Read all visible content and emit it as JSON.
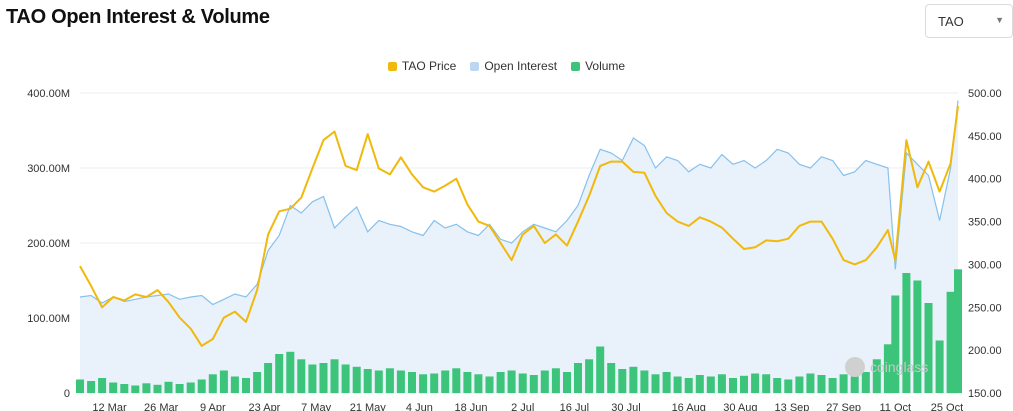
{
  "header": {
    "title": "TAO Open Interest & Volume",
    "symbol_select": {
      "value": "TAO"
    }
  },
  "colors": {
    "price": "#f0b90b",
    "open_interest_line": "#87c1ec",
    "open_interest_fill": "#e9f1fb",
    "volume": "#3cc47a"
  },
  "icons": {
    "dropdown": "caret-down-icon",
    "watermark": "coinglass-logo-icon"
  },
  "watermark": "coinglass",
  "chart_data": {
    "type": "line",
    "legend_position": "top-center",
    "legend": [
      "TAO Price",
      "Open Interest",
      "Volume"
    ],
    "x_ticks": [
      "12 Mar",
      "26 Mar",
      "9 Apr",
      "23 Apr",
      "7 May",
      "21 May",
      "4 Jun",
      "18 Jun",
      "2 Jul",
      "16 Jul",
      "30 Jul",
      "16 Aug",
      "30 Aug",
      "13 Sep",
      "27 Sep",
      "11 Oct",
      "25 Oct"
    ],
    "y_left": {
      "ticks": [
        "0",
        "100.00M",
        "200.00M",
        "300.00M",
        "400.00M"
      ],
      "range": [
        0,
        400000000
      ]
    },
    "y_right": {
      "ticks": [
        "150.00",
        "200.00",
        "250.00",
        "300.00",
        "350.00",
        "400.00",
        "450.00",
        "500.00"
      ],
      "range": [
        150,
        500
      ]
    },
    "grid": "horizontal",
    "series": [
      {
        "name": "TAO Price",
        "axis": "right",
        "type": "line",
        "x": [
          "2025-03-04",
          "2025-03-07",
          "2025-03-10",
          "2025-03-13",
          "2025-03-16",
          "2025-03-19",
          "2025-03-22",
          "2025-03-25",
          "2025-03-28",
          "2025-03-31",
          "2025-04-03",
          "2025-04-06",
          "2025-04-09",
          "2025-04-12",
          "2025-04-15",
          "2025-04-18",
          "2025-04-21",
          "2025-04-24",
          "2025-04-27",
          "2025-04-30",
          "2025-05-03",
          "2025-05-06",
          "2025-05-09",
          "2025-05-12",
          "2025-05-15",
          "2025-05-18",
          "2025-05-21",
          "2025-05-24",
          "2025-05-27",
          "2025-05-30",
          "2025-06-02",
          "2025-06-05",
          "2025-06-08",
          "2025-06-11",
          "2025-06-14",
          "2025-06-17",
          "2025-06-20",
          "2025-06-23",
          "2025-06-26",
          "2025-06-29",
          "2025-07-02",
          "2025-07-05",
          "2025-07-08",
          "2025-07-11",
          "2025-07-14",
          "2025-07-17",
          "2025-07-20",
          "2025-07-23",
          "2025-07-26",
          "2025-07-29",
          "2025-08-01",
          "2025-08-04",
          "2025-08-07",
          "2025-08-10",
          "2025-08-13",
          "2025-08-16",
          "2025-08-19",
          "2025-08-22",
          "2025-08-25",
          "2025-08-28",
          "2025-08-31",
          "2025-09-03",
          "2025-09-06",
          "2025-09-09",
          "2025-09-12",
          "2025-09-15",
          "2025-09-18",
          "2025-09-21",
          "2025-09-24",
          "2025-09-27",
          "2025-09-30",
          "2025-10-03",
          "2025-10-06",
          "2025-10-09",
          "2025-10-11",
          "2025-10-14",
          "2025-10-17",
          "2025-10-20",
          "2025-10-23",
          "2025-10-26",
          "2025-10-28"
        ],
        "values": [
          298,
          275,
          250,
          262,
          258,
          265,
          262,
          270,
          256,
          238,
          225,
          205,
          213,
          238,
          245,
          233,
          270,
          335,
          362,
          365,
          378,
          412,
          445,
          455,
          415,
          410,
          452,
          412,
          405,
          425,
          405,
          390,
          385,
          392,
          400,
          370,
          350,
          345,
          325,
          305,
          335,
          345,
          325,
          335,
          322,
          350,
          380,
          415,
          420,
          420,
          408,
          407,
          380,
          360,
          350,
          345,
          355,
          350,
          343,
          330,
          318,
          320,
          328,
          327,
          330,
          345,
          350,
          350,
          330,
          305,
          300,
          305,
          320,
          340,
          305,
          445,
          390,
          420,
          385,
          418,
          485
        ]
      },
      {
        "name": "Open Interest",
        "axis": "left",
        "type": "area",
        "x": [
          "2025-03-04",
          "2025-03-07",
          "2025-03-10",
          "2025-03-13",
          "2025-03-16",
          "2025-03-19",
          "2025-03-22",
          "2025-03-25",
          "2025-03-28",
          "2025-03-31",
          "2025-04-03",
          "2025-04-06",
          "2025-04-09",
          "2025-04-12",
          "2025-04-15",
          "2025-04-18",
          "2025-04-21",
          "2025-04-24",
          "2025-04-27",
          "2025-04-30",
          "2025-05-03",
          "2025-05-06",
          "2025-05-09",
          "2025-05-12",
          "2025-05-15",
          "2025-05-18",
          "2025-05-21",
          "2025-05-24",
          "2025-05-27",
          "2025-05-30",
          "2025-06-02",
          "2025-06-05",
          "2025-06-08",
          "2025-06-11",
          "2025-06-14",
          "2025-06-17",
          "2025-06-20",
          "2025-06-23",
          "2025-06-26",
          "2025-06-29",
          "2025-07-02",
          "2025-07-05",
          "2025-07-08",
          "2025-07-11",
          "2025-07-14",
          "2025-07-17",
          "2025-07-20",
          "2025-07-23",
          "2025-07-26",
          "2025-07-29",
          "2025-08-01",
          "2025-08-04",
          "2025-08-07",
          "2025-08-10",
          "2025-08-13",
          "2025-08-16",
          "2025-08-19",
          "2025-08-22",
          "2025-08-25",
          "2025-08-28",
          "2025-08-31",
          "2025-09-03",
          "2025-09-06",
          "2025-09-09",
          "2025-09-12",
          "2025-09-15",
          "2025-09-18",
          "2025-09-21",
          "2025-09-24",
          "2025-09-27",
          "2025-09-30",
          "2025-10-03",
          "2025-10-06",
          "2025-10-09",
          "2025-10-11",
          "2025-10-14",
          "2025-10-17",
          "2025-10-20",
          "2025-10-23",
          "2025-10-26",
          "2025-10-28"
        ],
        "values": [
          128,
          130,
          120,
          128,
          122,
          125,
          128,
          130,
          132,
          125,
          128,
          130,
          118,
          125,
          132,
          128,
          145,
          190,
          210,
          250,
          240,
          255,
          262,
          220,
          235,
          248,
          215,
          230,
          225,
          222,
          215,
          210,
          230,
          220,
          225,
          215,
          210,
          225,
          205,
          200,
          215,
          225,
          220,
          215,
          230,
          250,
          290,
          325,
          320,
          310,
          340,
          330,
          300,
          315,
          310,
          295,
          305,
          300,
          318,
          305,
          310,
          300,
          310,
          325,
          320,
          305,
          300,
          315,
          310,
          290,
          295,
          310,
          305,
          300,
          165,
          320,
          305,
          290,
          230,
          300,
          390
        ]
      },
      {
        "name": "Volume",
        "axis": "left",
        "type": "bar",
        "x": [
          "2025-03-04",
          "2025-03-07",
          "2025-03-10",
          "2025-03-13",
          "2025-03-16",
          "2025-03-19",
          "2025-03-22",
          "2025-03-25",
          "2025-03-28",
          "2025-03-31",
          "2025-04-03",
          "2025-04-06",
          "2025-04-09",
          "2025-04-12",
          "2025-04-15",
          "2025-04-18",
          "2025-04-21",
          "2025-04-24",
          "2025-04-27",
          "2025-04-30",
          "2025-05-03",
          "2025-05-06",
          "2025-05-09",
          "2025-05-12",
          "2025-05-15",
          "2025-05-18",
          "2025-05-21",
          "2025-05-24",
          "2025-05-27",
          "2025-05-30",
          "2025-06-02",
          "2025-06-05",
          "2025-06-08",
          "2025-06-11",
          "2025-06-14",
          "2025-06-17",
          "2025-06-20",
          "2025-06-23",
          "2025-06-26",
          "2025-06-29",
          "2025-07-02",
          "2025-07-05",
          "2025-07-08",
          "2025-07-11",
          "2025-07-14",
          "2025-07-17",
          "2025-07-20",
          "2025-07-23",
          "2025-07-26",
          "2025-07-29",
          "2025-08-01",
          "2025-08-04",
          "2025-08-07",
          "2025-08-10",
          "2025-08-13",
          "2025-08-16",
          "2025-08-19",
          "2025-08-22",
          "2025-08-25",
          "2025-08-28",
          "2025-08-31",
          "2025-09-03",
          "2025-09-06",
          "2025-09-09",
          "2025-09-12",
          "2025-09-15",
          "2025-09-18",
          "2025-09-21",
          "2025-09-24",
          "2025-09-27",
          "2025-09-30",
          "2025-10-03",
          "2025-10-06",
          "2025-10-09",
          "2025-10-11",
          "2025-10-14",
          "2025-10-17",
          "2025-10-20",
          "2025-10-23",
          "2025-10-26",
          "2025-10-28"
        ],
        "values": [
          18,
          16,
          20,
          14,
          12,
          10,
          13,
          11,
          15,
          12,
          14,
          18,
          25,
          30,
          22,
          20,
          28,
          40,
          52,
          55,
          45,
          38,
          40,
          45,
          38,
          35,
          32,
          30,
          33,
          30,
          28,
          25,
          26,
          30,
          33,
          28,
          25,
          22,
          28,
          30,
          26,
          24,
          30,
          33,
          28,
          40,
          45,
          62,
          40,
          32,
          35,
          30,
          25,
          28,
          22,
          20,
          24,
          22,
          25,
          20,
          23,
          26,
          25,
          20,
          18,
          22,
          26,
          24,
          20,
          25,
          22,
          28,
          45,
          65,
          130,
          160,
          150,
          120,
          70,
          135,
          165
        ]
      }
    ]
  }
}
